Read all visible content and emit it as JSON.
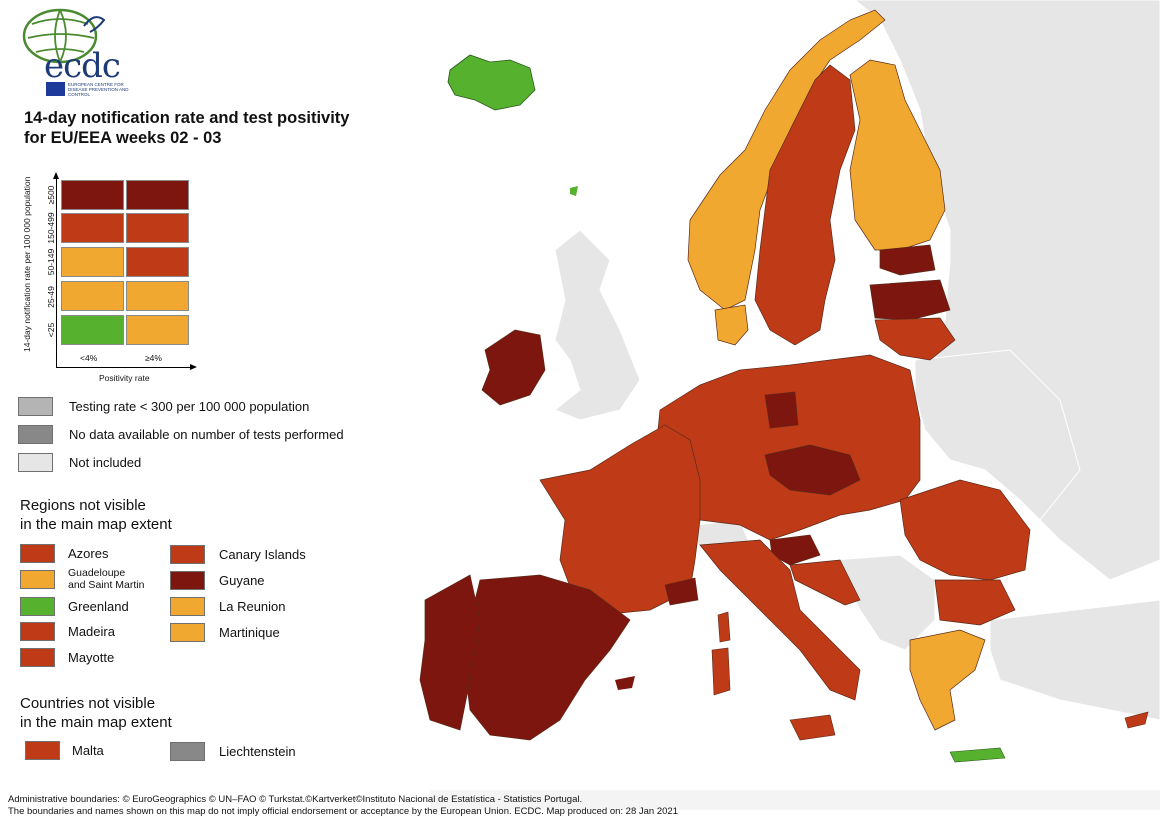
{
  "logo": {
    "text": "ecdc",
    "subtitle": "EUROPEAN CENTRE FOR DISEASE PREVENTION AND CONTROL"
  },
  "title": {
    "line1": "14-day notification rate and test positivity",
    "line2": "for EU/EEA weeks 02 - 03"
  },
  "matrix": {
    "y_axis_label": "14-day notification rate per 100 000 population",
    "x_axis_label": "Positivity rate",
    "rows": [
      "≥500",
      "150-499",
      "50-149",
      "25-49",
      "<25"
    ],
    "cols": [
      "<4%",
      "≥4%"
    ],
    "colors": [
      [
        "#7d160f",
        "#7d160f"
      ],
      [
        "#bf3a17",
        "#bf3a17"
      ],
      [
        "#f0a830",
        "#bf3a17"
      ],
      [
        "#f0a830",
        "#f0a830"
      ],
      [
        "#56b22e",
        "#f0a830"
      ]
    ]
  },
  "special_legend": [
    {
      "label": "Testing rate < 300 per 100 000 population",
      "color": "#b4b4b4"
    },
    {
      "label": "No data available on number of tests performed",
      "color": "#888888"
    },
    {
      "label": "Not included",
      "color": "#e6e6e6"
    }
  ],
  "regions": {
    "heading_line1": "Regions not visible",
    "heading_line2": "in the main map extent",
    "left": [
      {
        "label": "Azores",
        "color": "#bf3a17"
      },
      {
        "label": "Guadeloupe and Saint Martin",
        "color": "#f0a830"
      },
      {
        "label": "Greenland",
        "color": "#56b22e"
      },
      {
        "label": "Madeira",
        "color": "#bf3a17"
      },
      {
        "label": "Mayotte",
        "color": "#bf3a17"
      }
    ],
    "left_guadeloupe_line1": "Guadeloupe",
    "left_guadeloupe_line2": "and Saint Martin",
    "right": [
      {
        "label": "Canary Islands",
        "color": "#bf3a17"
      },
      {
        "label": "Guyane",
        "color": "#7d160f"
      },
      {
        "label": "La Reunion",
        "color": "#f0a830"
      },
      {
        "label": "Martinique",
        "color": "#f0a830"
      }
    ]
  },
  "countries": {
    "heading_line1": "Countries not visible",
    "heading_line2": "in the main map extent",
    "items": [
      {
        "label": "Malta",
        "color": "#bf3a17"
      },
      {
        "label": "Liechtenstein",
        "color": "#888888"
      }
    ]
  },
  "footer": {
    "line1": "Administrative boundaries: © EuroGeographics © UN–FAO © Turkstat.©Kartverket©Instituto Nacional de Estatística - Statistics Portugal.",
    "line2": "The boundaries and names shown on this map do not imply official endorsement or acceptance by the European Union. ECDC. Map produced on: 28 Jan 2021"
  },
  "map": {
    "colors": {
      "dark_red": "#7d160f",
      "red": "#bf3a17",
      "orange": "#f0a830",
      "green": "#56b22e",
      "not_included": "#e6e6e6",
      "border": "#5a2a1a"
    }
  }
}
